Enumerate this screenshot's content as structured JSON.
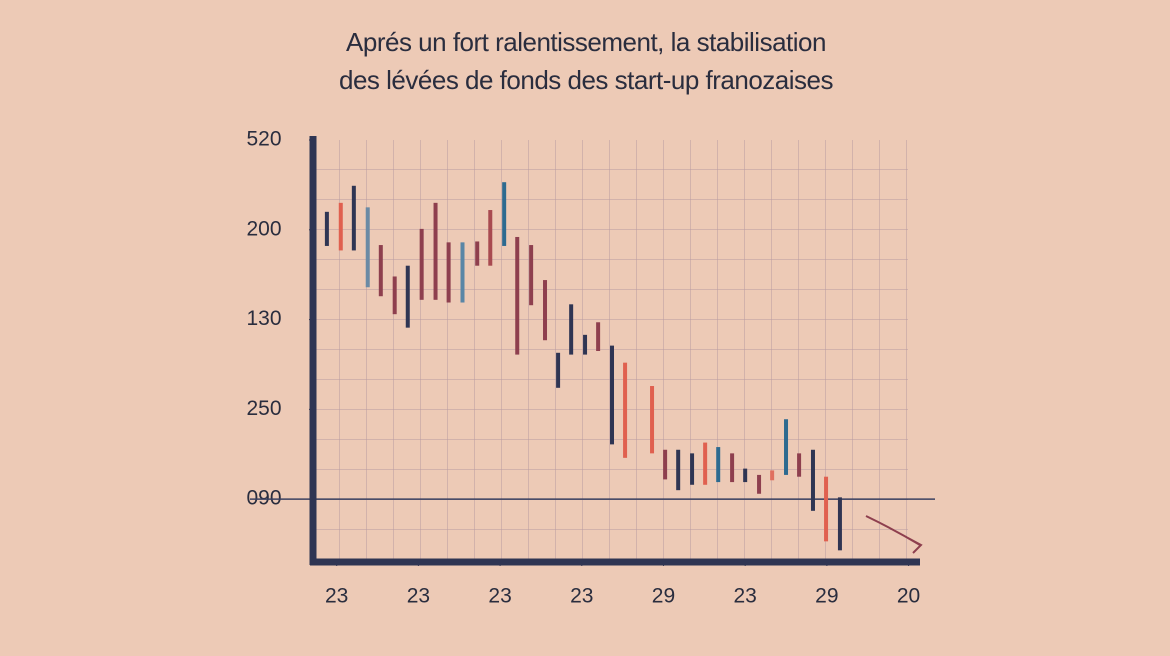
{
  "chart_data": {
    "type": "candlestick",
    "title": [
      "Aprés un fort ralentissement, la stabilisation",
      "des lévées de fonds des start-up franozaises"
    ],
    "x": [
      0.88,
      1.05,
      1.21,
      1.38,
      1.54,
      1.71,
      1.87,
      2.04,
      2.21,
      2.37,
      2.54,
      2.72,
      2.88,
      3.05,
      3.21,
      3.38,
      3.55,
      3.71,
      3.87,
      4.04,
      4.2,
      4.37,
      4.53,
      4.86,
      5.02,
      5.18,
      5.35,
      5.51,
      5.67,
      5.84,
      6.0,
      6.17,
      6.33,
      6.5,
      6.66,
      6.83,
      6.99,
      7.16
    ],
    "high": [
      3.2,
      3.3,
      3.49,
      3.25,
      2.83,
      2.48,
      2.6,
      3.01,
      3.3,
      2.86,
      2.86,
      2.87,
      3.22,
      3.53,
      2.92,
      2.83,
      2.44,
      1.63,
      2.17,
      1.83,
      1.97,
      1.71,
      1.52,
      1.26,
      0.55,
      0.55,
      0.51,
      0.63,
      0.58,
      0.51,
      0.34,
      0.27,
      0.32,
      0.89,
      0.51,
      0.55,
      0.25,
      0.02
    ],
    "low": [
      2.82,
      2.77,
      2.77,
      2.36,
      2.26,
      2.06,
      1.91,
      2.22,
      2.22,
      2.19,
      2.19,
      2.6,
      2.6,
      2.82,
      1.61,
      2.16,
      1.77,
      1.24,
      1.61,
      1.61,
      1.65,
      0.61,
      0.46,
      0.51,
      0.22,
      0.1,
      0.16,
      0.16,
      0.19,
      0.19,
      0.19,
      0.06,
      0.21,
      0.27,
      0.25,
      -0.13,
      -0.47,
      -0.57
    ],
    "colors": [
      "#2f3553",
      "#e0604f",
      "#2f3553",
      "#6a8aa5",
      "#8e3f4e",
      "#8e3f4e",
      "#2f3553",
      "#8e3f4e",
      "#8e3f4e",
      "#8e3f4e",
      "#5a86a6",
      "#8e3f4e",
      "#a84a50",
      "#2d6a90",
      "#8e3f4e",
      "#8e3f4e",
      "#8e3f4e",
      "#2f3553",
      "#2f3553",
      "#2f3553",
      "#8e3f4e",
      "#2f3553",
      "#e0604f",
      "#e0604f",
      "#8e3f4e",
      "#2f3553",
      "#2f3553",
      "#e0604f",
      "#2d6a90",
      "#8e3f4e",
      "#2f3553",
      "#8e3f4e",
      "#e0705f",
      "#2d6a90",
      "#8e3f4e",
      "#2f3553",
      "#e0604f",
      "#2f3553"
    ],
    "ylim": [
      -0.7,
      4.0
    ],
    "yticks": [
      {
        "value": 4,
        "label": "520"
      },
      {
        "value": 3,
        "label": "200"
      },
      {
        "value": 2,
        "label": "130"
      },
      {
        "value": 1,
        "label": "250"
      },
      {
        "value": 0,
        "label": "090"
      }
    ],
    "xlim": [
      0.71,
      8.14
    ],
    "xticks": [
      {
        "value": 1,
        "label": "23"
      },
      {
        "value": 2,
        "label": "23"
      },
      {
        "value": 3,
        "label": "23"
      },
      {
        "value": 4,
        "label": "23"
      },
      {
        "value": 5,
        "label": "29"
      },
      {
        "value": 6,
        "label": "23"
      },
      {
        "value": 7,
        "label": "29"
      },
      {
        "value": 8,
        "label": "20"
      }
    ],
    "reference_line": 0
  }
}
